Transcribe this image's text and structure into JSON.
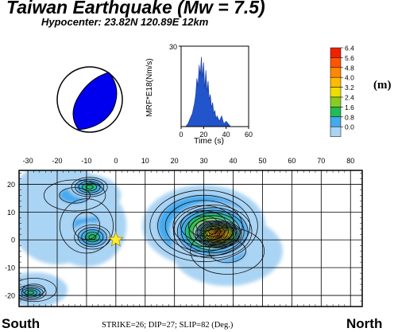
{
  "header": {
    "title": "Taiwan Earthquake (Mw = 7.5)",
    "hypocenter": "Hypocenter:  23.82N   120.89E   12km"
  },
  "footer": {
    "south": "South",
    "north": "North",
    "params": "STRIKE=26; DIP=27; SLIP=82 (Deg.)"
  },
  "colorbar": {
    "unit": "(m)",
    "ticks": [
      "6.4",
      "5.6",
      "4.8",
      "4.0",
      "3.2",
      "2.4",
      "1.6",
      "0.8",
      "0.0"
    ],
    "colors": [
      "#ee2200",
      "#ff5500",
      "#ff8800",
      "#ffbb00",
      "#eedd00",
      "#88cc22",
      "#22bb55",
      "#44aaee",
      "#aad4f4",
      "#ffffff"
    ]
  },
  "chart_data": [
    {
      "type": "area",
      "ylabel": "MRF*E18(Nm/s)",
      "xlabel": "Time (s)",
      "xlim": [
        0,
        60
      ],
      "ylim": [
        0,
        30
      ],
      "xticks": [
        "0",
        "20",
        "40",
        "60"
      ],
      "yticks": [
        "30"
      ],
      "color": "#2255cc",
      "x": [
        4,
        6,
        8,
        10,
        12,
        13,
        14,
        15,
        16,
        17,
        18,
        19,
        20,
        21,
        22,
        23,
        24,
        25,
        26,
        27,
        28,
        29,
        30,
        31,
        32,
        34,
        36,
        38,
        40,
        42,
        44
      ],
      "y": [
        0,
        1,
        3,
        5,
        9,
        12,
        18,
        15,
        23,
        19,
        26,
        18,
        24,
        14,
        21,
        13,
        17,
        10,
        12,
        7,
        9,
        5,
        6,
        3,
        4,
        2,
        4,
        1,
        2,
        1,
        0
      ]
    },
    {
      "type": "heatmap",
      "xlabel": "",
      "ylabel": "",
      "xticks": [
        "-30",
        "-20",
        "-10",
        "0",
        "10",
        "20",
        "30",
        "40",
        "50",
        "60",
        "70",
        "80"
      ],
      "yticks": [
        "20",
        "10",
        "0",
        "-10",
        "-20"
      ],
      "xlim": [
        -33,
        84
      ],
      "ylim": [
        -24,
        25
      ],
      "hypocenter_marker": {
        "x": 0,
        "y": 0
      },
      "patches": [
        {
          "x": 35,
          "y": 2,
          "slip": 6.4,
          "sx": 8,
          "sy": 5
        },
        {
          "x": 33,
          "y": 3,
          "slip": 4.6,
          "sx": 14,
          "sy": 10
        },
        {
          "x": 30,
          "y": 5,
          "slip": 3.0,
          "sx": 20,
          "sy": 14
        },
        {
          "x": 38,
          "y": -4,
          "slip": 1.4,
          "sx": 18,
          "sy": 12
        },
        {
          "x": -9,
          "y": 19,
          "slip": 2.4,
          "sx": 7,
          "sy": 4
        },
        {
          "x": -14,
          "y": 16,
          "slip": 1.2,
          "sx": 15,
          "sy": 8
        },
        {
          "x": -8,
          "y": 1,
          "slip": 2.2,
          "sx": 7,
          "sy": 5
        },
        {
          "x": -10,
          "y": 5,
          "slip": 1.0,
          "sx": 13,
          "sy": 14
        },
        {
          "x": -29,
          "y": -19,
          "slip": 2.2,
          "sx": 6,
          "sy": 3
        },
        {
          "x": -28,
          "y": -18,
          "slip": 1.0,
          "sx": 11,
          "sy": 6
        },
        {
          "x": -20,
          "y": 10,
          "slip": 0.6,
          "sx": 16,
          "sy": 18
        }
      ]
    }
  ],
  "beachball": {
    "compression_color": "#0000ee"
  }
}
